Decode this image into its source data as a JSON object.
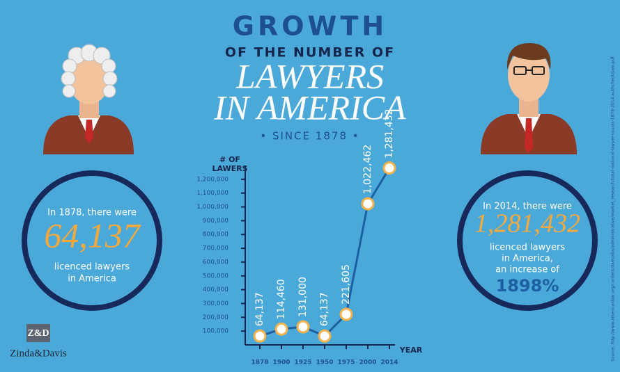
{
  "header": {
    "line1": "GROWTH",
    "line2": "OF THE NUMBER OF",
    "line3": "LAWYERS",
    "line4": "IN AMERICA",
    "line5": "• SINCE 1878 •"
  },
  "left_panel": {
    "intro": "In 1878, there were",
    "number": "64,137",
    "line1": "licenced lawyers",
    "line2": "in America"
  },
  "right_panel": {
    "intro": "In 2014, there were",
    "number": "1,281,432",
    "line1": "licenced lawyers",
    "line2": "in America,",
    "line3": "an increase of",
    "percent": "1898%"
  },
  "logo": {
    "mark": "Z&D",
    "name": "Zinda&Davis"
  },
  "source": "Source: http://www.americanbar.org/content/dam/aba/administrative/market_research/total-national-lawyer-counts-1878-2014.authcheckdam.pdf",
  "chart_data": {
    "type": "line",
    "y_label": [
      "# OF",
      "LAWERS"
    ],
    "x_label": "YEAR",
    "categories": [
      "1878",
      "1900",
      "1925",
      "1950",
      "1975",
      "2000",
      "2014"
    ],
    "series": [
      {
        "name": "Lawyers",
        "color": "#1d5fa3",
        "values": [
          64137,
          114460,
          131000,
          64137,
          221605,
          1022462,
          1281432
        ],
        "value_labels": [
          "64,137",
          "114,460",
          "131,000",
          "64,137",
          "221,605",
          "1,022,462",
          "1,281,432"
        ]
      }
    ],
    "marker_color": "#f5b24a",
    "ylim": [
      0,
      1300000
    ],
    "yticks": [
      {
        "value": 100000,
        "label": "100,000"
      },
      {
        "value": 200000,
        "label": "200,000"
      },
      {
        "value": 300000,
        "label": "300,000"
      },
      {
        "value": 400000,
        "label": "400,000"
      },
      {
        "value": 500000,
        "label": "500,000"
      },
      {
        "value": 600000,
        "label": "600,000"
      },
      {
        "value": 700000,
        "label": "700,000"
      },
      {
        "value": 800000,
        "label": "800,000"
      },
      {
        "value": 900000,
        "label": "900,000"
      },
      {
        "value": 1000000,
        "label": "1,000,000"
      },
      {
        "value": 1100000,
        "label": "1,100,000"
      },
      {
        "value": 1200000,
        "label": "1,200,000"
      }
    ]
  }
}
